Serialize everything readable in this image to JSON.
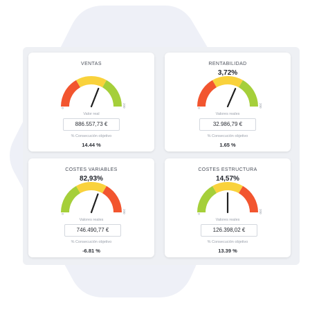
{
  "colors": {
    "red": "#f2552f",
    "orange": "#f07a2e",
    "yellow": "#f9d23c",
    "green": "#a5cf3a",
    "needle": "#1f1f1f",
    "hexagon": "#eef0f7"
  },
  "cards": [
    {
      "title": "VENTAS",
      "percent": "",
      "segments": [
        "red",
        "yellow",
        "green"
      ],
      "needle_fraction": 0.62,
      "gauge_min": "0",
      "gauge_max": "200",
      "sublabel": "Valor real",
      "value": "886.557,73 €",
      "objective_label": "% Consecución objetivo",
      "objective_value": "14.44 %"
    },
    {
      "title": "RENTABILIDAD",
      "percent": "3,72%",
      "segments": [
        "red",
        "yellow",
        "green"
      ],
      "needle_fraction": 0.63,
      "gauge_min": "0",
      "gauge_max": "200",
      "sublabel": "Valores reales",
      "value": "32.986,79 €",
      "objective_label": "% Consecución objetivo",
      "objective_value": "1.65 %"
    },
    {
      "title": "COSTES VARIABLES",
      "percent": "82,93%",
      "segments": [
        "green",
        "yellow",
        "red"
      ],
      "needle_fraction": 0.61,
      "gauge_min": "0",
      "gauge_max": "200",
      "sublabel": "Valores reales",
      "value": "746.490,77 €",
      "objective_label": "% Consecución objetivo",
      "objective_value": "-6.81 %"
    },
    {
      "title": "COSTES ESTRUCTURA",
      "percent": "14,57%",
      "segments": [
        "green",
        "yellow",
        "red"
      ],
      "needle_fraction": 0.5,
      "gauge_min": "0",
      "gauge_max": "200",
      "sublabel": "Valores reales",
      "value": "126.398,02 €",
      "objective_label": "% Consecución objetivo",
      "objective_value": "13.39 %"
    }
  ]
}
